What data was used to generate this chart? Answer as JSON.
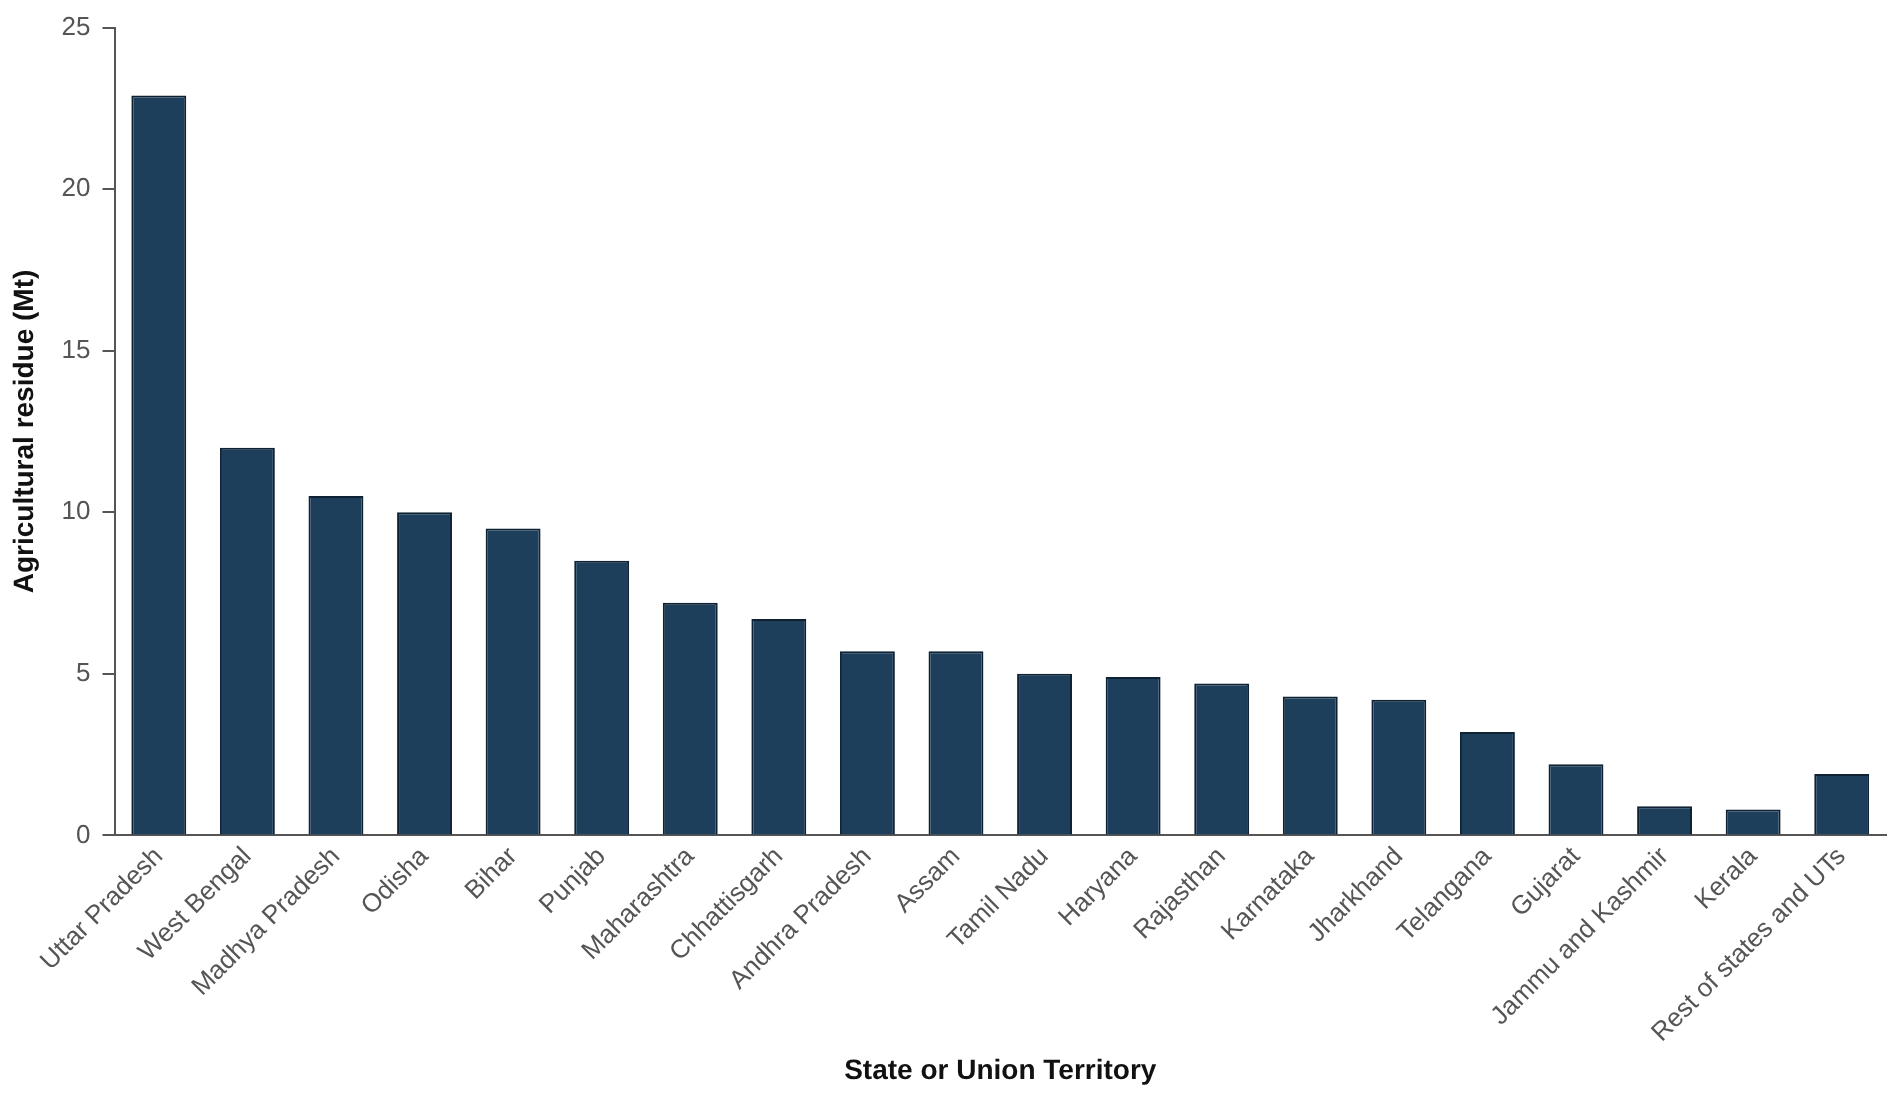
{
  "chart_data": {
    "type": "bar",
    "xlabel": "State or Union Territory",
    "ylabel": "Agricultural residue (Mt)",
    "categories": [
      "Uttar Pradesh",
      "West Bengal",
      "Madhya Pradesh",
      "Odisha",
      "Bihar",
      "Punjab",
      "Maharashtra",
      "Chhattisgarh",
      "Andhra Pradesh",
      "Assam",
      "Tamil Nadu",
      "Haryana",
      "Rajasthan",
      "Karnataka",
      "Jharkhand",
      "Telangana",
      "Gujarat",
      "Jammu and Kashmir",
      "Kerala",
      "Rest of states and UTs"
    ],
    "values": [
      22.9,
      12.0,
      10.5,
      10.0,
      9.5,
      8.5,
      7.2,
      6.7,
      5.7,
      5.7,
      5.0,
      4.9,
      4.7,
      4.3,
      4.2,
      3.2,
      2.2,
      0.9,
      0.8,
      1.9
    ],
    "color": "#1d3f5c",
    "ylim": [
      0,
      25
    ],
    "yticks": [
      0,
      5,
      10,
      15,
      20,
      25
    ],
    "grid": false,
    "legend": false
  }
}
